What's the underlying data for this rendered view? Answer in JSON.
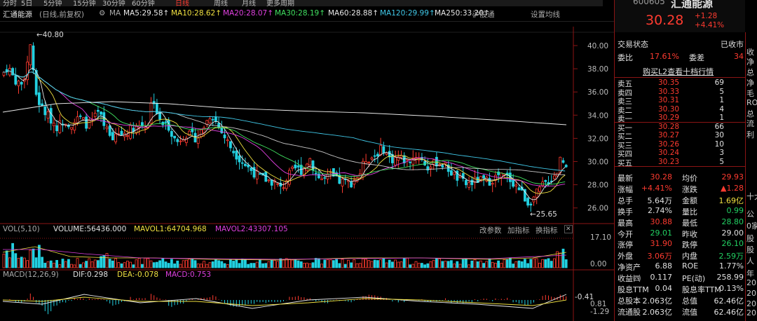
{
  "tabs": [
    "分时",
    "5日",
    "5分钟",
    "15分钟",
    "30分钟",
    "60分钟",
    "日线",
    "周线",
    "月线",
    "更多周期",
    "",
    "",
    "",
    "",
    "",
    "",
    "",
    ""
  ],
  "header": {
    "name": "汇通能源",
    "mode": "(日线,前复权)",
    "gear": "⚙",
    "ma_label": "MA",
    "ma": [
      {
        "t": "MA5:29.58",
        "c": "#e8e8e8"
      },
      {
        "t": "MA10:28.62",
        "c": "#f0e040"
      },
      {
        "t": "MA20:28.07",
        "c": "#e040e0"
      },
      {
        "t": "MA30:28.19",
        "c": "#40e060"
      },
      {
        "t": "MA60:28.88",
        "c": "#e8e8e8"
      },
      {
        "t": "MA120:29.99",
        "c": "#40c8e8"
      },
      {
        "t": "MA250:33.20",
        "c": "#e8e8e8"
      }
    ],
    "btn_index": "沪股通",
    "btn_set": "设置均线"
  },
  "price_axis": [
    "40.00",
    "38.00",
    "36.00",
    "34.00",
    "32.00",
    "30.00",
    "28.00",
    "26.00"
  ],
  "annot_high": "40.80",
  "annot_low": "25.65",
  "vol": {
    "title": "VOL(5,10)",
    "volume": "VOLUME:56436.000",
    "mavol1": "MAVOL1:64704.968",
    "mavol2": "MAVOL2:43307.105",
    "b1": "改参数",
    "b2": "加指标",
    "b3": "换指标",
    "close": "✕",
    "axis": [
      "17.10",
      "0.00"
    ]
  },
  "macd": {
    "title": "MACD(12,26,9)",
    "dif": "DIF:0.298",
    "dea": "DEA:-0.078",
    "macd": "MACD:0.753",
    "axis": [
      "0.81",
      "-0.41",
      "-1.29"
    ]
  },
  "chart_data": {
    "type": "candlestick",
    "title": "汇通能源 (日线,前复权)",
    "ylim": [
      25,
      41
    ],
    "ma": {
      "MA5": 29.58,
      "MA10": 28.62,
      "MA20": 28.07,
      "MA30": 28.19,
      "MA60": 28.88,
      "MA120": 29.99,
      "MA250": 33.2
    },
    "high": 40.8,
    "low": 25.65,
    "last": 30.28,
    "volume_last": 56436,
    "mavol1": 64704.968,
    "mavol2": 43307.105,
    "dif": 0.298,
    "dea": -0.078,
    "macd": 0.753
  },
  "quote": {
    "code": "600605",
    "name": "汇通能源",
    "price": "30.28",
    "change": "+1.28",
    "pct": "+4.41%",
    "status_label": "交易状态",
    "status": "已收市",
    "wb_label": "委比",
    "wb": "17.61%",
    "wc_label": "委差",
    "wc": "34",
    "l2": "购买L2查看十档行情",
    "sells": [
      {
        "l": "卖五",
        "p": "30.35",
        "v": "69"
      },
      {
        "l": "卖四",
        "p": "30.33",
        "v": "5"
      },
      {
        "l": "卖三",
        "p": "30.31",
        "v": "1"
      },
      {
        "l": "卖二",
        "p": "30.30",
        "v": "4"
      },
      {
        "l": "卖一",
        "p": "30.29",
        "v": "1"
      }
    ],
    "buys": [
      {
        "l": "买一",
        "p": "30.28",
        "v": "66"
      },
      {
        "l": "买二",
        "p": "30.27",
        "v": "30"
      },
      {
        "l": "买三",
        "p": "30.26",
        "v": "10"
      },
      {
        "l": "买四",
        "p": "30.24",
        "v": "3"
      },
      {
        "l": "买五",
        "p": "30.23",
        "v": "5"
      }
    ],
    "stats": [
      {
        "l1": "最新",
        "v1": "30.28",
        "c1": "red",
        "l2": "均价",
        "v2": "29.93",
        "c2": "red"
      },
      {
        "l1": "涨幅",
        "v1": "+4.41%",
        "c1": "red",
        "l2": "涨跌",
        "v2": "▲1.28",
        "c2": "red"
      },
      {
        "l1": "总手",
        "v1": "5.64万",
        "c1": "wh",
        "l2": "金额",
        "v2": "1.69亿",
        "c2": "yel"
      },
      {
        "l1": "换手",
        "v1": "2.74%",
        "c1": "wh",
        "l2": "量比",
        "v2": "0.99",
        "c2": "grn"
      },
      {
        "l1": "最高",
        "v1": "30.88",
        "c1": "red",
        "l2": "最低",
        "v2": "28.80",
        "c2": "grn"
      },
      {
        "l1": "今开",
        "v1": "29.01",
        "c1": "grn",
        "l2": "昨收",
        "v2": "29.00",
        "c2": "wh"
      },
      {
        "l1": "涨停",
        "v1": "31.90",
        "c1": "red",
        "l2": "跌停",
        "v2": "26.10",
        "c2": "grn"
      },
      {
        "l1": "外盘",
        "v1": "3.06万",
        "c1": "red",
        "l2": "内盘",
        "v2": "2.59万",
        "c2": "grn"
      },
      {
        "l1": "净资产",
        "v1": "6.88",
        "c1": "wh",
        "l2": "ROE",
        "v2": "1.77%",
        "c2": "wh"
      },
      {
        "l1": "收益㈣",
        "v1": "0.117",
        "c1": "wh",
        "l2": "PE(动)",
        "v2": "258.99",
        "c2": "wh"
      },
      {
        "l1": "股息TTM",
        "v1": "0.04",
        "c1": "wh",
        "l2": "股息率TTM",
        "v2": "0.13%",
        "c2": "wh"
      },
      {
        "l1": "总股本",
        "v1": "2.063亿",
        "c1": "wh",
        "l2": "总值",
        "v2": "62.46亿",
        "c2": "wh"
      },
      {
        "l1": "流通股",
        "v1": "2.063亿",
        "c1": "wh",
        "l2": "流值",
        "v2": "62.46亿",
        "c2": "wh"
      }
    ],
    "edge": [
      "收",
      "净",
      "总",
      "净",
      "毛",
      "RO",
      "总",
      "流",
      "利",
      "十大",
      "公",
      "0家",
      "股",
      "股",
      "人",
      "年",
      "20",
      "20",
      "20",
      "20"
    ]
  }
}
